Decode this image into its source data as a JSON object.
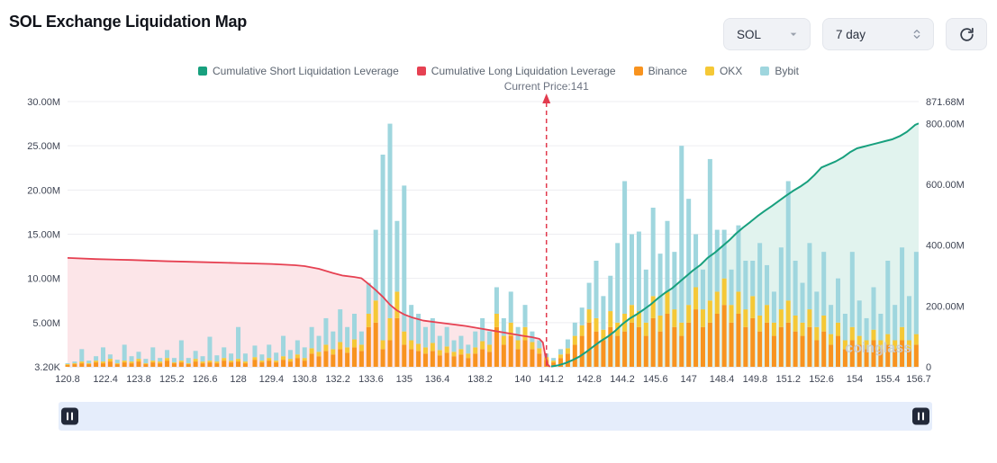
{
  "header": {
    "title": "SOL Exchange Liquidation Map",
    "symbol_select": "SOL",
    "period_select": "7 day"
  },
  "annotations": {
    "current_price_label": "Current Price:141"
  },
  "watermark": "coinglass",
  "colors": {
    "short_leverage": "#18a07e",
    "long_leverage": "#e64152",
    "binance": "#f8931f",
    "okx": "#f5c836",
    "bybit": "#9fd6de",
    "long_fill": "#fce5e8",
    "short_fill": "#e1f3ee",
    "grid": "#ededf1",
    "baseline": "#d8dbe0",
    "axis_text": "#3f4554",
    "current_price_line": "#e23b4e"
  },
  "chart_data": {
    "type": "stacked-bar+cumulative-line",
    "title": "SOL Exchange Liquidation Map",
    "current_price": 141,
    "legend": [
      {
        "label": "Cumulative Short Liquidation Leverage",
        "color": "#18a07e"
      },
      {
        "label": "Cumulative Long Liquidation Leverage",
        "color": "#e64152"
      },
      {
        "label": "Binance",
        "color": "#f8931f"
      },
      {
        "label": "OKX",
        "color": "#f5c836"
      },
      {
        "label": "Bybit",
        "color": "#9fd6de"
      }
    ],
    "x_axis": {
      "min": 120.8,
      "max": 156.7,
      "ticks": [
        [
          120.8,
          "120.8"
        ],
        [
          122.4,
          "122.4"
        ],
        [
          123.8,
          "123.8"
        ],
        [
          125.2,
          "125.2"
        ],
        [
          126.6,
          "126.6"
        ],
        [
          128,
          "128"
        ],
        [
          129.4,
          "129.4"
        ],
        [
          130.8,
          "130.8"
        ],
        [
          132.2,
          "132.2"
        ],
        [
          133.6,
          "133.6"
        ],
        [
          135,
          "135"
        ],
        [
          136.4,
          "136.4"
        ],
        [
          138.2,
          "138.2"
        ],
        [
          140,
          "140"
        ],
        [
          141.2,
          "141.2"
        ],
        [
          142.8,
          "142.8"
        ],
        [
          144.2,
          "144.2"
        ],
        [
          145.6,
          "145.6"
        ],
        [
          147,
          "147"
        ],
        [
          148.4,
          "148.4"
        ],
        [
          149.8,
          "149.8"
        ],
        [
          151.2,
          "151.2"
        ],
        [
          152.6,
          "152.6"
        ],
        [
          154,
          "154"
        ],
        [
          155.4,
          "155.4"
        ],
        [
          156.7,
          "156.7"
        ]
      ]
    },
    "left_axis": {
      "max_m": 30,
      "tick_labels": [
        "30.00M",
        "25.00M",
        "20.00M",
        "15.00M",
        "10.00M",
        "5.00M",
        "3.20K"
      ]
    },
    "right_axis": {
      "max_m": 871.68,
      "ticks": [
        {
          "value_m": 871.68,
          "label": "871.68M"
        },
        {
          "value_m": 800,
          "label": "800.00M"
        },
        {
          "value_m": 600,
          "label": "600.00M"
        },
        {
          "value_m": 400,
          "label": "400.00M"
        },
        {
          "value_m": 200,
          "label": "200.00M"
        },
        {
          "value_m": 0,
          "label": "0"
        }
      ]
    },
    "bars": {
      "unit": "millions_usd",
      "series_order": [
        "binance",
        "okx",
        "bybit"
      ],
      "points": [
        [
          120.8,
          0.2,
          0.1,
          0.1
        ],
        [
          121.1,
          0.3,
          0.1,
          0.2
        ],
        [
          121.4,
          0.4,
          0.2,
          1.4
        ],
        [
          121.7,
          0.3,
          0.1,
          0.3
        ],
        [
          122.0,
          0.5,
          0.2,
          0.5
        ],
        [
          122.3,
          0.4,
          0.2,
          1.6
        ],
        [
          122.6,
          0.6,
          0.3,
          0.5
        ],
        [
          122.9,
          0.3,
          0.1,
          0.4
        ],
        [
          123.2,
          0.5,
          0.2,
          1.8
        ],
        [
          123.5,
          0.4,
          0.2,
          0.6
        ],
        [
          123.8,
          0.6,
          0.3,
          0.8
        ],
        [
          124.1,
          0.3,
          0.1,
          0.5
        ],
        [
          124.4,
          0.5,
          0.2,
          1.5
        ],
        [
          124.7,
          0.4,
          0.2,
          0.4
        ],
        [
          125.0,
          0.7,
          0.3,
          0.9
        ],
        [
          125.3,
          0.4,
          0.1,
          0.5
        ],
        [
          125.6,
          0.5,
          0.2,
          2.3
        ],
        [
          125.9,
          0.3,
          0.1,
          0.6
        ],
        [
          126.2,
          0.6,
          0.3,
          0.9
        ],
        [
          126.5,
          0.4,
          0.2,
          0.6
        ],
        [
          126.8,
          0.5,
          0.2,
          2.7
        ],
        [
          127.1,
          0.4,
          0.2,
          0.7
        ],
        [
          127.4,
          0.7,
          0.3,
          1.2
        ],
        [
          127.7,
          0.5,
          0.2,
          0.8
        ],
        [
          128.0,
          0.6,
          0.3,
          3.6
        ],
        [
          128.3,
          0.4,
          0.2,
          0.9
        ],
        [
          128.7,
          0.8,
          0.3,
          1.3
        ],
        [
          129.0,
          0.5,
          0.2,
          0.7
        ],
        [
          129.3,
          0.7,
          0.3,
          1.5
        ],
        [
          129.6,
          0.5,
          0.2,
          0.9
        ],
        [
          129.9,
          0.8,
          0.4,
          2.3
        ],
        [
          130.2,
          0.6,
          0.3,
          1.0
        ],
        [
          130.5,
          1.0,
          0.4,
          1.6
        ],
        [
          130.8,
          0.7,
          0.3,
          1.2
        ],
        [
          131.1,
          1.5,
          0.6,
          2.4
        ],
        [
          131.4,
          1.2,
          0.5,
          1.8
        ],
        [
          131.7,
          1.8,
          0.7,
          3.0
        ],
        [
          132.0,
          1.4,
          0.6,
          2.0
        ],
        [
          132.3,
          2.0,
          0.8,
          3.7
        ],
        [
          132.6,
          1.6,
          0.6,
          2.3
        ],
        [
          132.9,
          2.2,
          0.9,
          2.9
        ],
        [
          133.2,
          1.8,
          0.7,
          1.5
        ],
        [
          133.5,
          4.5,
          1.5,
          3.5
        ],
        [
          133.8,
          5.0,
          2.5,
          8.0
        ],
        [
          134.1,
          2.0,
          1.0,
          21.0
        ],
        [
          134.4,
          3.0,
          2.5,
          22.0
        ],
        [
          134.7,
          5.5,
          3.0,
          8.0
        ],
        [
          135.0,
          2.5,
          1.5,
          16.5
        ],
        [
          135.3,
          2.0,
          1.0,
          4.0
        ],
        [
          135.6,
          1.8,
          0.8,
          3.4
        ],
        [
          135.9,
          1.5,
          0.7,
          2.3
        ],
        [
          136.2,
          1.8,
          0.9,
          2.8
        ],
        [
          136.5,
          1.3,
          0.6,
          1.6
        ],
        [
          136.8,
          1.6,
          0.7,
          2.2
        ],
        [
          137.1,
          1.2,
          0.5,
          1.3
        ],
        [
          137.4,
          1.4,
          0.6,
          1.5
        ],
        [
          137.7,
          1.0,
          0.5,
          1.0
        ],
        [
          138.0,
          1.5,
          0.7,
          1.8
        ],
        [
          138.3,
          2.0,
          0.9,
          2.6
        ],
        [
          138.6,
          1.7,
          0.8,
          1.5
        ],
        [
          138.9,
          4.5,
          1.5,
          3.0
        ],
        [
          139.2,
          2.5,
          1.0,
          2.0
        ],
        [
          139.5,
          3.5,
          1.5,
          3.5
        ],
        [
          139.8,
          2.0,
          1.0,
          1.5
        ],
        [
          140.1,
          3.0,
          1.5,
          2.5
        ],
        [
          140.4,
          2.0,
          0.8,
          1.2
        ],
        [
          140.7,
          1.5,
          0.6,
          0.9
        ],
        [
          141.0,
          0.8,
          0.3,
          0.4
        ],
        [
          141.3,
          0.5,
          0.2,
          0.3
        ],
        [
          141.6,
          1.0,
          0.4,
          0.6
        ],
        [
          141.9,
          1.5,
          0.6,
          1.0
        ],
        [
          142.2,
          2.5,
          1.0,
          1.5
        ],
        [
          142.5,
          3.5,
          1.2,
          2.0
        ],
        [
          142.8,
          5.0,
          1.5,
          3.0
        ],
        [
          143.1,
          4.0,
          1.5,
          6.5
        ],
        [
          143.4,
          3.0,
          1.2,
          3.8
        ],
        [
          143.7,
          4.5,
          1.8,
          4.0
        ],
        [
          144.0,
          3.5,
          1.5,
          9.0
        ],
        [
          144.3,
          4.0,
          2.0,
          15.0
        ],
        [
          144.6,
          5.0,
          2.0,
          8.0
        ],
        [
          144.9,
          4.5,
          1.8,
          9.0
        ],
        [
          145.2,
          3.5,
          1.5,
          6.0
        ],
        [
          145.5,
          5.5,
          2.5,
          10.0
        ],
        [
          145.8,
          4.0,
          1.8,
          7.0
        ],
        [
          146.1,
          6.0,
          2.5,
          8.0
        ],
        [
          146.4,
          4.5,
          2.0,
          6.5
        ],
        [
          146.7,
          3.5,
          1.5,
          20.0
        ],
        [
          147.0,
          5.0,
          2.0,
          12.0
        ],
        [
          147.3,
          6.5,
          2.5,
          6.0
        ],
        [
          147.6,
          4.5,
          2.0,
          4.5
        ],
        [
          147.9,
          5.0,
          2.5,
          16.0
        ],
        [
          148.2,
          6.0,
          2.5,
          7.0
        ],
        [
          148.5,
          7.0,
          3.0,
          5.5
        ],
        [
          148.8,
          5.0,
          2.0,
          4.0
        ],
        [
          149.1,
          6.0,
          2.5,
          7.5
        ],
        [
          149.4,
          4.5,
          2.0,
          5.5
        ],
        [
          149.7,
          5.5,
          2.5,
          4.0
        ],
        [
          150.0,
          4.0,
          1.8,
          8.2
        ],
        [
          150.3,
          5.0,
          2.0,
          4.5
        ],
        [
          150.6,
          3.5,
          1.5,
          3.5
        ],
        [
          150.9,
          4.5,
          2.0,
          7.0
        ],
        [
          151.2,
          5.0,
          2.5,
          13.5
        ],
        [
          151.5,
          4.0,
          1.8,
          6.2
        ],
        [
          151.8,
          3.5,
          1.5,
          4.5
        ],
        [
          152.1,
          4.5,
          2.0,
          7.5
        ],
        [
          152.4,
          3.0,
          1.5,
          4.0
        ],
        [
          152.7,
          4.0,
          1.8,
          7.2
        ],
        [
          153.0,
          2.5,
          1.2,
          3.3
        ],
        [
          153.3,
          3.5,
          1.5,
          5.0
        ],
        [
          153.6,
          2.0,
          1.0,
          3.0
        ],
        [
          153.9,
          3.0,
          1.5,
          8.5
        ],
        [
          154.2,
          2.5,
          1.0,
          4.0
        ],
        [
          154.5,
          2.0,
          1.0,
          2.5
        ],
        [
          154.8,
          3.0,
          1.2,
          4.8
        ],
        [
          155.1,
          2.0,
          1.0,
          3.0
        ],
        [
          155.4,
          2.5,
          1.2,
          8.3
        ],
        [
          155.7,
          2.0,
          1.0,
          4.0
        ],
        [
          156.0,
          3.0,
          1.5,
          9.0
        ],
        [
          156.3,
          2.0,
          1.0,
          5.0
        ],
        [
          156.6,
          2.5,
          1.2,
          9.3
        ]
      ]
    },
    "long_line": {
      "name": "Cumulative Long Liquidation Leverage",
      "unit": "millions_usd_right_axis",
      "points": [
        [
          120.8,
          358
        ],
        [
          122,
          354
        ],
        [
          123.5,
          351
        ],
        [
          125,
          347
        ],
        [
          126.5,
          344
        ],
        [
          128,
          341
        ],
        [
          129.4,
          338
        ],
        [
          130.4,
          334
        ],
        [
          130.8,
          331
        ],
        [
          131.4,
          322
        ],
        [
          132,
          308
        ],
        [
          132.4,
          300
        ],
        [
          132.9,
          295
        ],
        [
          133.2,
          291
        ],
        [
          133.5,
          272
        ],
        [
          133.8,
          252
        ],
        [
          134.1,
          230
        ],
        [
          134.4,
          204
        ],
        [
          134.7,
          185
        ],
        [
          135,
          172
        ],
        [
          135.3,
          163
        ],
        [
          135.8,
          152
        ],
        [
          136.4,
          146
        ],
        [
          137,
          140
        ],
        [
          137.6,
          134
        ],
        [
          138.2,
          126
        ],
        [
          138.8,
          118
        ],
        [
          139.4,
          110
        ],
        [
          140,
          102
        ],
        [
          140.4,
          97
        ],
        [
          140.7,
          92
        ],
        [
          140.85,
          80
        ],
        [
          140.95,
          38
        ],
        [
          141.05,
          8
        ],
        [
          141.15,
          0
        ]
      ]
    },
    "short_line": {
      "name": "Cumulative Short Liquidation Leverage",
      "unit": "millions_usd_right_axis",
      "points": [
        [
          141.2,
          1
        ],
        [
          141.5,
          5
        ],
        [
          141.8,
          12
        ],
        [
          142.1,
          22
        ],
        [
          142.4,
          34
        ],
        [
          142.7,
          50
        ],
        [
          143,
          68
        ],
        [
          143.3,
          85
        ],
        [
          143.6,
          100
        ],
        [
          143.9,
          118
        ],
        [
          144.2,
          140
        ],
        [
          144.5,
          158
        ],
        [
          144.8,
          172
        ],
        [
          145.1,
          188
        ],
        [
          145.4,
          205
        ],
        [
          145.7,
          225
        ],
        [
          146,
          243
        ],
        [
          146.3,
          258
        ],
        [
          146.6,
          278
        ],
        [
          146.9,
          298
        ],
        [
          147.2,
          318
        ],
        [
          147.5,
          335
        ],
        [
          147.8,
          358
        ],
        [
          148.1,
          375
        ],
        [
          148.4,
          395
        ],
        [
          148.7,
          415
        ],
        [
          149,
          438
        ],
        [
          149.3,
          458
        ],
        [
          149.6,
          476
        ],
        [
          149.9,
          495
        ],
        [
          150.2,
          512
        ],
        [
          150.5,
          528
        ],
        [
          150.8,
          545
        ],
        [
          151.1,
          562
        ],
        [
          151.4,
          578
        ],
        [
          151.7,
          592
        ],
        [
          152,
          608
        ],
        [
          152.3,
          630
        ],
        [
          152.6,
          655
        ],
        [
          152.9,
          665
        ],
        [
          153.2,
          675
        ],
        [
          153.5,
          688
        ],
        [
          153.8,
          705
        ],
        [
          154.1,
          718
        ],
        [
          154.4,
          724
        ],
        [
          154.7,
          730
        ],
        [
          155,
          736
        ],
        [
          155.3,
          742
        ],
        [
          155.6,
          748
        ],
        [
          155.9,
          758
        ],
        [
          156.2,
          772
        ],
        [
          156.4,
          785
        ],
        [
          156.55,
          795
        ],
        [
          156.7,
          800
        ]
      ]
    }
  }
}
